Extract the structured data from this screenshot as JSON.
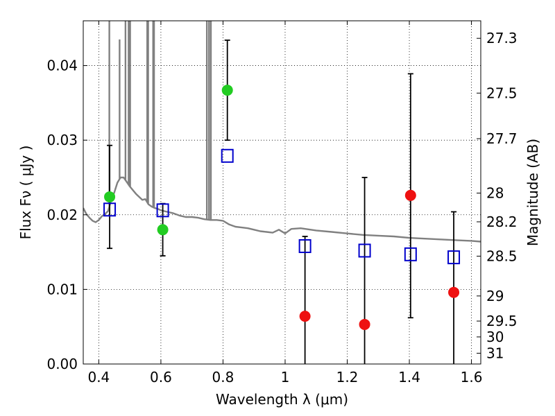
{
  "chart_data": {
    "type": "scatter",
    "title": "",
    "xlabel": "Wavelength  λ (μm)",
    "ylabel": "Flux  Fν  ( μJy )",
    "ylabel_right": "Magnitude (AB)",
    "xlim": [
      0.35,
      1.63
    ],
    "ylim": [
      0.0,
      0.046
    ],
    "grid": true,
    "x_ticks": [
      {
        "value": 0.4,
        "label": "0.4"
      },
      {
        "value": 0.6,
        "label": "0.6"
      },
      {
        "value": 0.8,
        "label": "0.8"
      },
      {
        "value": 1.0,
        "label": "1"
      },
      {
        "value": 1.2,
        "label": "1.2"
      },
      {
        "value": 1.4,
        "label": "1.4"
      },
      {
        "value": 1.6,
        "label": "1.6"
      }
    ],
    "y_ticks": [
      {
        "value": 0.0,
        "label": "0.00"
      },
      {
        "value": 0.01,
        "label": "0.01"
      },
      {
        "value": 0.02,
        "label": "0.02"
      },
      {
        "value": 0.03,
        "label": "0.03"
      },
      {
        "value": 0.04,
        "label": "0.04"
      }
    ],
    "right_ticks": [
      {
        "mag": 27.3,
        "label": "27.3"
      },
      {
        "mag": 27.5,
        "label": "27.5"
      },
      {
        "mag": 27.7,
        "label": "27.7"
      },
      {
        "mag": 28,
        "label": "28"
      },
      {
        "mag": 28.2,
        "label": "28.2"
      },
      {
        "mag": 28.5,
        "label": "28.5"
      },
      {
        "mag": 29,
        "label": "29"
      },
      {
        "mag": 29.5,
        "label": "29.5"
      },
      {
        "mag": 30,
        "label": "30"
      },
      {
        "mag": 31,
        "label": "31"
      }
    ],
    "series": [
      {
        "marker": "line",
        "color": "#808080",
        "points": [
          [
            0.35,
            0.0209
          ],
          [
            0.36,
            0.0201
          ],
          [
            0.37,
            0.0196
          ],
          [
            0.38,
            0.0192
          ],
          [
            0.39,
            0.019
          ],
          [
            0.4,
            0.0193
          ],
          [
            0.41,
            0.0198
          ],
          [
            0.42,
            0.0201
          ],
          [
            0.43,
            0.0205
          ],
          [
            0.44,
            0.022
          ],
          [
            0.45,
            0.023
          ],
          [
            0.46,
            0.0243
          ],
          [
            0.47,
            0.025
          ],
          [
            0.48,
            0.025
          ],
          [
            0.49,
            0.0244
          ],
          [
            0.5,
            0.0238
          ],
          [
            0.51,
            0.0233
          ],
          [
            0.52,
            0.0228
          ],
          [
            0.53,
            0.0224
          ],
          [
            0.54,
            0.022
          ],
          [
            0.55,
            0.0221
          ],
          [
            0.56,
            0.0214
          ],
          [
            0.57,
            0.0211
          ],
          [
            0.58,
            0.0209
          ],
          [
            0.59,
            0.0208
          ],
          [
            0.6,
            0.0206
          ],
          [
            0.62,
            0.0204
          ],
          [
            0.64,
            0.0202
          ],
          [
            0.66,
            0.0199
          ],
          [
            0.68,
            0.0197
          ],
          [
            0.7,
            0.0197
          ],
          [
            0.72,
            0.0196
          ],
          [
            0.74,
            0.0194
          ],
          [
            0.76,
            0.0193
          ],
          [
            0.78,
            0.0193
          ],
          [
            0.8,
            0.0192
          ],
          [
            0.82,
            0.0187
          ],
          [
            0.84,
            0.0184
          ],
          [
            0.86,
            0.0183
          ],
          [
            0.88,
            0.0182
          ],
          [
            0.9,
            0.018
          ],
          [
            0.92,
            0.0178
          ],
          [
            0.94,
            0.0177
          ],
          [
            0.96,
            0.0176
          ],
          [
            0.98,
            0.018
          ],
          [
            1.0,
            0.0175
          ],
          [
            1.02,
            0.0181
          ],
          [
            1.05,
            0.0182
          ],
          [
            1.1,
            0.0179
          ],
          [
            1.15,
            0.0177
          ],
          [
            1.2,
            0.0175
          ],
          [
            1.25,
            0.0173
          ],
          [
            1.3,
            0.0172
          ],
          [
            1.35,
            0.0171
          ],
          [
            1.4,
            0.0169
          ],
          [
            1.45,
            0.0168
          ],
          [
            1.5,
            0.0167
          ],
          [
            1.55,
            0.0166
          ],
          [
            1.6,
            0.0165
          ],
          [
            1.63,
            0.0164
          ]
        ],
        "spikes": [
          [
            0.434,
            0.046
          ],
          [
            0.467,
            0.0435
          ],
          [
            0.486,
            0.046
          ],
          [
            0.496,
            0.046
          ],
          [
            0.501,
            0.046
          ],
          [
            0.556,
            0.046
          ],
          [
            0.559,
            0.046
          ],
          [
            0.575,
            0.046
          ],
          [
            0.578,
            0.046
          ],
          [
            0.748,
            0.046
          ],
          [
            0.755,
            0.046
          ],
          [
            0.761,
            0.046
          ]
        ]
      },
      {
        "marker": "open-square",
        "color": "#0000cc",
        "points": [
          [
            0.435,
            0.0207
          ],
          [
            0.606,
            0.0206
          ],
          [
            0.814,
            0.0279
          ],
          [
            1.064,
            0.0158
          ],
          [
            1.256,
            0.0152
          ],
          [
            1.404,
            0.0147
          ],
          [
            1.543,
            0.0143
          ]
        ]
      },
      {
        "marker": "circle",
        "color": "#22cc22",
        "points": [
          [
            0.435,
            0.0224
          ],
          [
            0.606,
            0.018
          ],
          [
            0.814,
            0.0367
          ]
        ]
      },
      {
        "marker": "circle",
        "color": "#ee1111",
        "points": [
          [
            1.064,
            0.0064
          ],
          [
            1.256,
            0.0053
          ],
          [
            1.404,
            0.0226
          ],
          [
            1.543,
            0.0096
          ]
        ]
      }
    ],
    "error_bars": [
      {
        "x": 0.435,
        "low": 0.0155,
        "high": 0.0293
      },
      {
        "x": 0.606,
        "low": 0.0145,
        "high": 0.0215
      },
      {
        "x": 0.814,
        "low": 0.03,
        "high": 0.0434
      },
      {
        "x": 1.064,
        "low": 0.0,
        "high": 0.0171
      },
      {
        "x": 1.256,
        "low": 0.0,
        "high": 0.025
      },
      {
        "x": 1.404,
        "low": 0.0062,
        "high": 0.0389
      },
      {
        "x": 1.543,
        "low": 0.0,
        "high": 0.0204
      }
    ]
  }
}
